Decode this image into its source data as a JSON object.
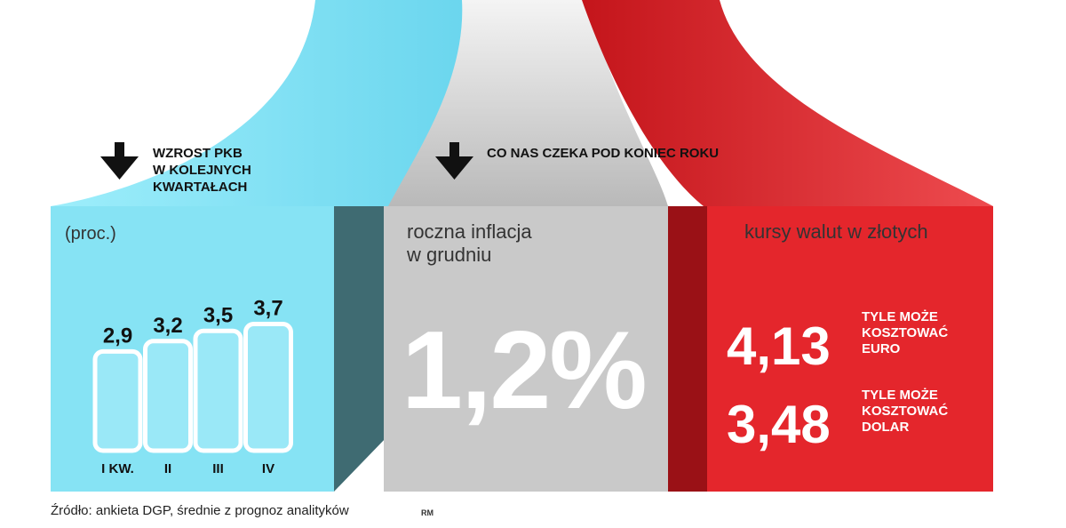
{
  "gdp": {
    "heading": [
      "WZROST PKB",
      "W KOLEJNYCH",
      "KWARTAŁACH"
    ],
    "unit": "(proc.)",
    "colors": {
      "panel": "#86e3f4",
      "side": "#3f6b72",
      "bar_fill": "#9ae8f7"
    }
  },
  "forecast_heading": "CO NAS CZEKA POD KONIEC ROKU",
  "inflation": {
    "label": [
      "roczna inflacja",
      "w grudniu"
    ],
    "value": "1,2%",
    "colors": {
      "panel": "#c9c9c9"
    }
  },
  "currency": {
    "label": "kursy walut w złotych",
    "euro": {
      "value": "4,13",
      "caption": [
        "TYLE MOŻE",
        "KOSZTOWAĆ",
        "EURO"
      ]
    },
    "dollar": {
      "value": "3,48",
      "caption": [
        "TYLE MOŻE",
        "KOSZTOWAĆ",
        "DOLAR"
      ]
    },
    "colors": {
      "panel": "#e4262c",
      "side": "#9c1419"
    }
  },
  "source": "Źródło: ankieta DGP, średnie z prognoz analityków",
  "credit": "RM",
  "icons": [
    "arrow-down-icon",
    "arrow-down-icon"
  ],
  "chart_data": {
    "type": "bar",
    "categories": [
      "I KW.",
      "II",
      "III",
      "IV"
    ],
    "values": [
      2.9,
      3.2,
      3.5,
      3.7
    ],
    "value_labels": [
      "2,9",
      "3,2",
      "3,5",
      "3,7"
    ],
    "ylabel": "(proc.)"
  }
}
